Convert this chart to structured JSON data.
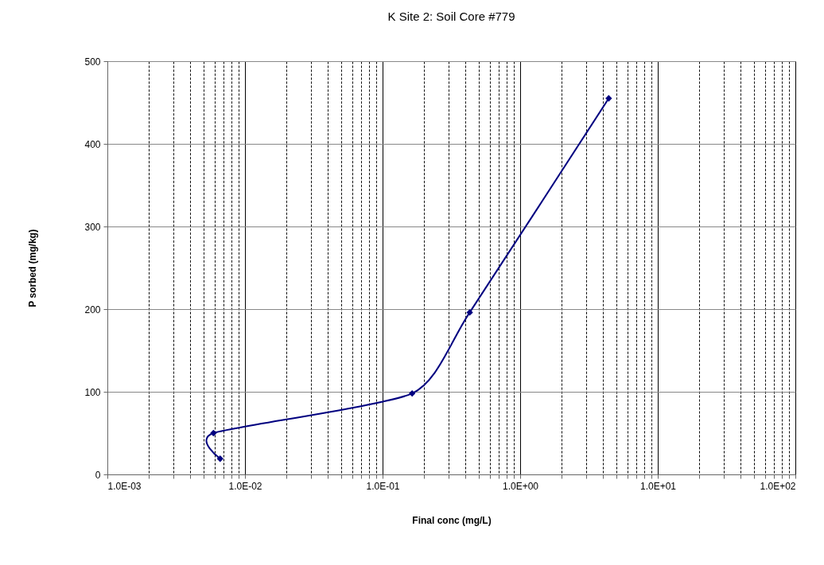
{
  "chart_data": {
    "type": "line",
    "title": "K Site 2: Soil Core #779",
    "xlabel": "Final conc (mg/L)",
    "ylabel": "P sorbed (mg/kg)",
    "x": [
      0.0066,
      0.0059,
      0.164,
      0.43,
      4.4
    ],
    "series": [
      {
        "color": "#000080",
        "values": [
          19,
          50,
          98,
          196,
          455
        ]
      }
    ],
    "log": "x",
    "xlim": [
      0.001,
      100
    ],
    "ylim": [
      0,
      500
    ],
    "yticks": [
      0,
      100,
      200,
      300,
      400,
      500
    ],
    "xticks": [
      {
        "value": 0.001,
        "label": "1.0E-03"
      },
      {
        "value": 0.002,
        "label": null
      },
      {
        "value": 0.003,
        "label": null
      },
      {
        "value": 0.004,
        "label": null
      },
      {
        "value": 0.005,
        "label": null
      },
      {
        "value": 0.006,
        "label": null
      },
      {
        "value": 0.007,
        "label": null
      },
      {
        "value": 0.008,
        "label": null
      },
      {
        "value": 0.009,
        "label": null
      },
      {
        "value": 0.01,
        "label": "1.0E-02"
      },
      {
        "value": 0.02,
        "label": null
      },
      {
        "value": 0.03,
        "label": null
      },
      {
        "value": 0.04,
        "label": null
      },
      {
        "value": 0.05,
        "label": null
      },
      {
        "value": 0.06,
        "label": null
      },
      {
        "value": 0.07,
        "label": null
      },
      {
        "value": 0.08,
        "label": null
      },
      {
        "value": 0.09,
        "label": null
      },
      {
        "value": 0.1,
        "label": "1.0E-01"
      },
      {
        "value": 0.2,
        "label": null
      },
      {
        "value": 0.3,
        "label": null
      },
      {
        "value": 0.4,
        "label": null
      },
      {
        "value": 0.5,
        "label": null
      },
      {
        "value": 0.6,
        "label": null
      },
      {
        "value": 0.7,
        "label": null
      },
      {
        "value": 0.8,
        "label": null
      },
      {
        "value": 0.9,
        "label": null
      },
      {
        "value": 1,
        "label": "1.0E+00"
      },
      {
        "value": 2,
        "label": null
      },
      {
        "value": 3,
        "label": null
      },
      {
        "value": 4,
        "label": null
      },
      {
        "value": 5,
        "label": null
      },
      {
        "value": 6,
        "label": null
      },
      {
        "value": 7,
        "label": null
      },
      {
        "value": 8,
        "label": null
      },
      {
        "value": 9,
        "label": null
      },
      {
        "value": 10,
        "label": "1.0E+01"
      },
      {
        "value": 20,
        "label": null
      },
      {
        "value": 30,
        "label": null
      },
      {
        "value": 40,
        "label": null
      },
      {
        "value": 50,
        "label": null
      },
      {
        "value": 60,
        "label": null
      },
      {
        "value": 70,
        "label": null
      },
      {
        "value": 80,
        "label": null
      },
      {
        "value": 90,
        "label": null
      },
      {
        "value": 100,
        "label": "1.0E+02"
      }
    ],
    "grid": true,
    "marker": "diamond",
    "line_style": "solid"
  }
}
